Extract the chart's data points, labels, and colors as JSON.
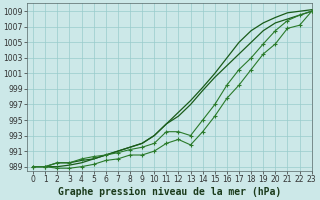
{
  "title": "Graphe pression niveau de la mer (hPa)",
  "x": [
    0,
    1,
    2,
    3,
    4,
    5,
    6,
    7,
    8,
    9,
    10,
    11,
    12,
    13,
    14,
    15,
    16,
    17,
    18,
    19,
    20,
    21,
    22,
    23
  ],
  "line_smooth_upper": [
    989.0,
    989.0,
    989.5,
    989.5,
    989.8,
    990.0,
    990.5,
    991.0,
    991.5,
    992.0,
    993.0,
    994.5,
    996.0,
    997.5,
    999.2,
    1001.0,
    1003.0,
    1005.0,
    1006.5,
    1007.5,
    1008.2,
    1008.8,
    1009.0,
    1009.2
  ],
  "line_smooth_lower": [
    989.0,
    989.0,
    989.0,
    989.2,
    989.5,
    990.0,
    990.5,
    991.0,
    991.5,
    992.0,
    993.0,
    994.5,
    995.5,
    997.0,
    998.8,
    1000.5,
    1002.0,
    1003.5,
    1005.0,
    1006.5,
    1007.5,
    1008.0,
    1008.5,
    1009.0
  ],
  "line_marker_upper": [
    989.0,
    989.0,
    989.5,
    989.5,
    990.0,
    990.3,
    990.5,
    990.8,
    991.2,
    991.5,
    992.0,
    993.5,
    993.5,
    993.0,
    995.0,
    997.0,
    999.5,
    1001.5,
    1003.0,
    1004.8,
    1006.5,
    1007.8,
    1008.5,
    1009.0
  ],
  "line_marker_lower": [
    989.0,
    989.0,
    988.8,
    988.8,
    989.0,
    989.3,
    989.8,
    990.0,
    990.5,
    990.5,
    991.0,
    992.0,
    992.5,
    991.8,
    993.5,
    995.5,
    997.8,
    999.5,
    1001.5,
    1003.5,
    1004.8,
    1006.8,
    1007.2,
    1009.0
  ],
  "bg_color": "#cce8e8",
  "grid_color": "#99cccc",
  "line_color_dark": "#1a5c1a",
  "line_color_mid": "#2a7a2a",
  "xlim": [
    -0.5,
    23
  ],
  "ylim": [
    988.5,
    1010
  ],
  "yticks": [
    989,
    991,
    993,
    995,
    997,
    999,
    1001,
    1003,
    1005,
    1007,
    1009
  ],
  "xticks": [
    0,
    1,
    2,
    3,
    4,
    5,
    6,
    7,
    8,
    9,
    10,
    11,
    12,
    13,
    14,
    15,
    16,
    17,
    18,
    19,
    20,
    21,
    22,
    23
  ],
  "tick_fontsize": 5.5,
  "label_fontsize": 7,
  "label_fontweight": "bold"
}
